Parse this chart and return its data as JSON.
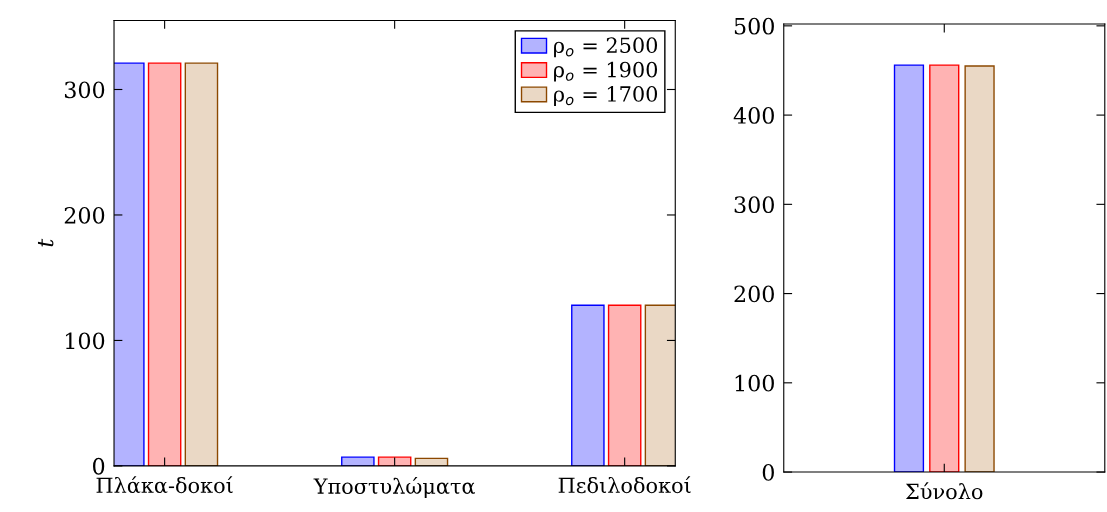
{
  "chart_data": [
    {
      "type": "bar",
      "ylabel": "t",
      "categories": [
        "Πλάκα-δοκοί",
        "Υποστυλώματα",
        "Πεδιλοδοκοί"
      ],
      "ylim": [
        0,
        355
      ],
      "yticks": [
        0,
        100,
        200,
        300
      ],
      "grid": false,
      "legend": "top right",
      "series": [
        {
          "name": "ρ$_{o}$ = 2500",
          "color": "#b3b3ff",
          "values": [
            321,
            7,
            128
          ]
        },
        {
          "name": "ρ$_{o}$ = 1900",
          "color": "#ffb3b3",
          "values": [
            321,
            7,
            128
          ]
        },
        {
          "name": "ρ$_{o}$ = 1700",
          "color": "#ead8c5",
          "values": [
            321,
            6,
            128
          ]
        }
      ]
    },
    {
      "type": "bar",
      "categories": [
        "Σύνολο"
      ],
      "ylim": [
        0,
        502
      ],
      "yticks": [
        0,
        100,
        200,
        300,
        400,
        500
      ],
      "grid": false,
      "legend": false,
      "series": [
        {
          "color": "#b3b3ff",
          "values": [
            456
          ]
        },
        {
          "color": "#ffb3b3",
          "values": [
            456
          ]
        },
        {
          "color": "#ead8c5",
          "values": [
            455
          ]
        }
      ]
    }
  ]
}
